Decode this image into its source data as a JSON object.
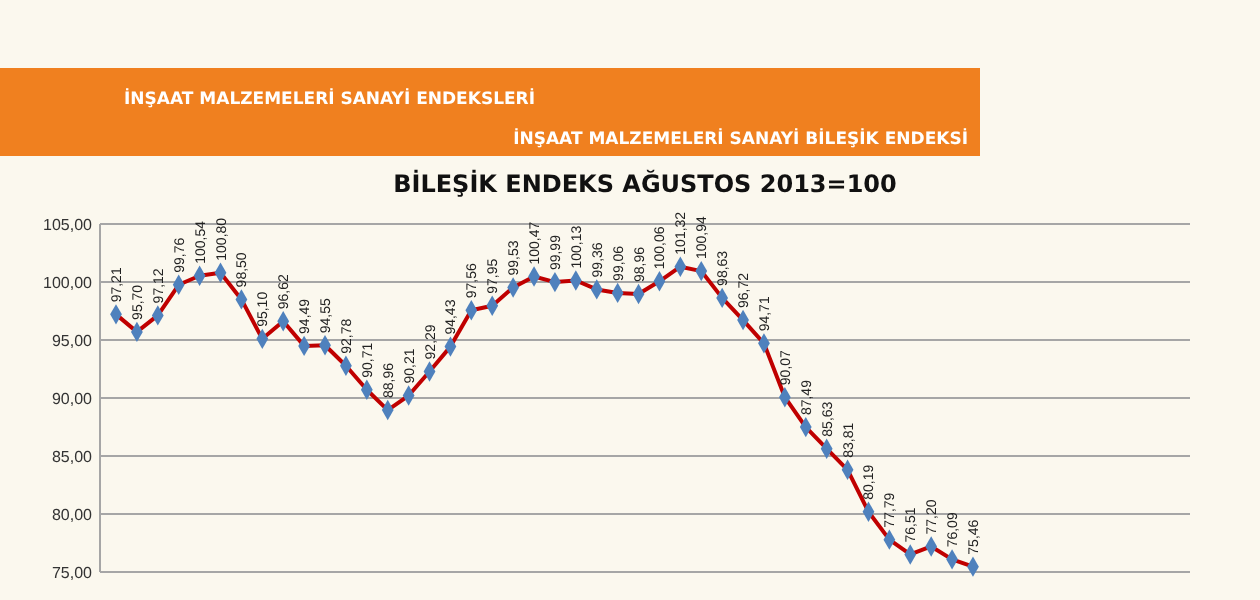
{
  "chart_data": {
    "type": "line",
    "title": "BİLEŞİK ENDEKS AĞUSTOS 2013=100",
    "annotations": [
      "İNŞAAT MALZEMELERİ SANAYİ ENDEKSLERİ",
      "İNŞAAT MALZEMELERİ SANAYİ BİLEŞİK ENDEKSİ"
    ],
    "categories": [
      null,
      null,
      null,
      null,
      null,
      null,
      null,
      null,
      null,
      null,
      null,
      null,
      null,
      null,
      null,
      null,
      null,
      null,
      null,
      null,
      null,
      null,
      null,
      null,
      null,
      null,
      null,
      null,
      null,
      null,
      null,
      null,
      null,
      null,
      null,
      null,
      null,
      null,
      null,
      null,
      null,
      null,
      null,
      null,
      null,
      null,
      null,
      null,
      null,
      null,
      null,
      null
    ],
    "series": [
      {
        "color": "#c00000",
        "values": [
          97.21,
          95.7,
          97.12,
          99.76,
          100.54,
          100.8,
          98.5,
          95.1,
          96.62,
          94.49,
          94.55,
          92.78,
          90.71,
          88.96,
          90.21,
          92.29,
          94.43,
          97.56,
          97.95,
          99.53,
          100.47,
          99.99,
          100.13,
          99.36,
          99.06,
          98.96,
          100.06,
          101.32,
          100.94,
          98.63,
          96.72,
          94.71,
          90.07,
          87.49,
          85.63,
          83.81,
          80.19,
          77.79,
          76.51,
          77.2,
          76.09,
          75.46,
          null,
          null,
          null,
          null,
          null,
          null,
          null,
          null,
          null,
          null
        ],
        "value_labels": [
          "97,21",
          "95,70",
          "97,12",
          "99,76",
          "100,54",
          "100,80",
          "98,50",
          "95,10",
          "96,62",
          "94,49",
          "94,55",
          "92,78",
          "90,71",
          "88,96",
          "90,21",
          "92,29",
          "94,43",
          "97,56",
          "97,95",
          "99,53",
          "100,47",
          "99,99",
          "100,13",
          "99,36",
          "99,06",
          "98,96",
          "100,06",
          "101,32",
          "100,94",
          "98,63",
          "96,72",
          "94,71",
          "90,07",
          "87,49",
          "85,63",
          "83,81",
          "80,19",
          "77,79",
          "76,51",
          "77,20",
          "76,09",
          "75,46",
          null,
          null,
          null,
          null,
          null,
          null,
          null,
          null,
          null,
          null
        ]
      }
    ],
    "ylim": [
      75,
      105
    ],
    "yticks": [
      {
        "value": 75,
        "label": "75,00"
      },
      {
        "value": 80,
        "label": "80,00"
      },
      {
        "value": 85,
        "label": "85,00"
      },
      {
        "value": 90,
        "label": "90,00"
      },
      {
        "value": 95,
        "label": "95,00"
      },
      {
        "value": 100,
        "label": "100,00"
      },
      {
        "value": 105,
        "label": "105,00"
      }
    ],
    "grid": "y",
    "marker": "diamond",
    "line_style": "solid",
    "tick_labels": "y"
  }
}
